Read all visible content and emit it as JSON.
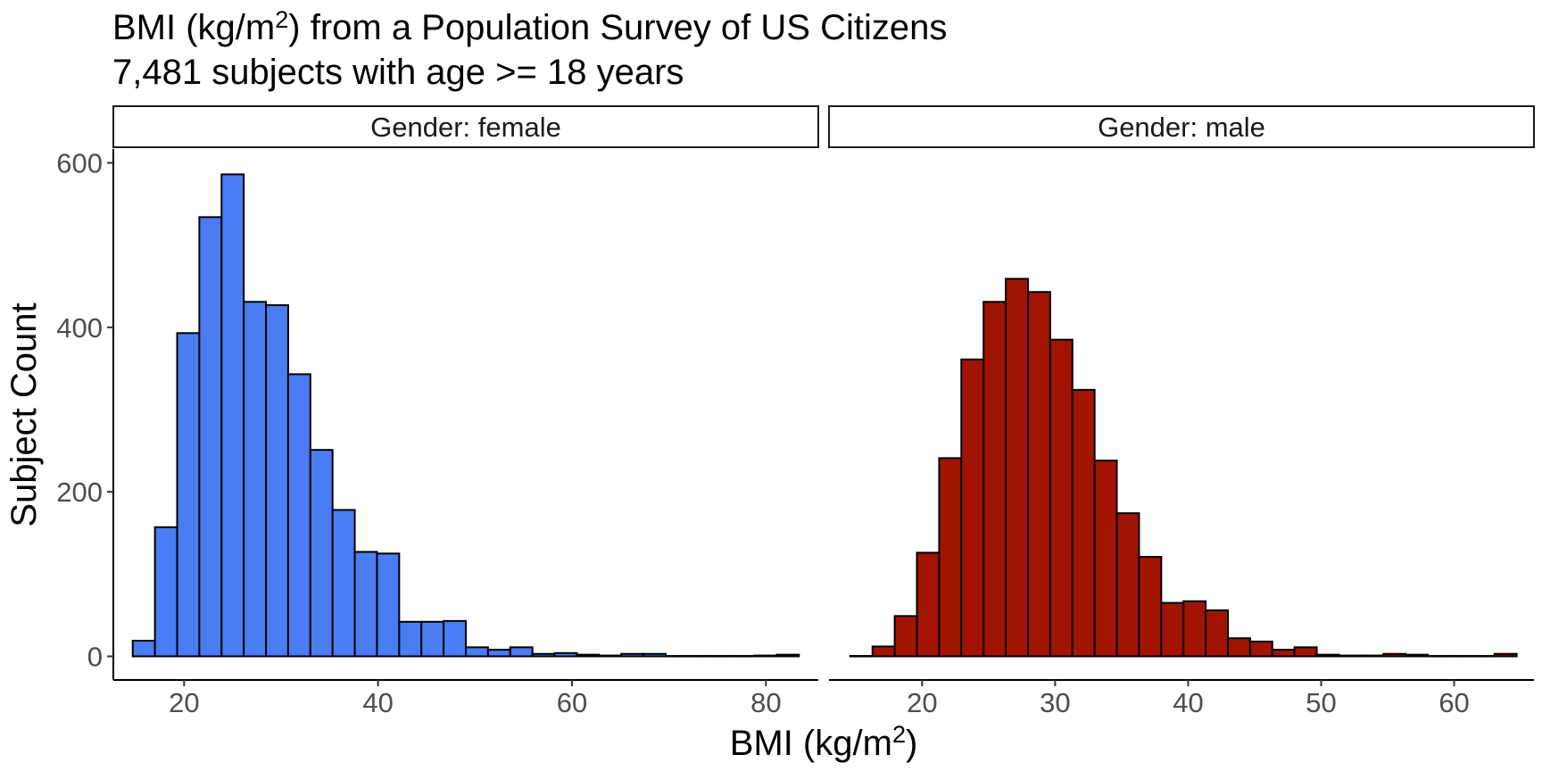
{
  "chart_data": {
    "type": "bar",
    "title": {
      "pre": "BMI (kg/m",
      "sup": "2",
      "post": ") from a Population Survey of US Citizens"
    },
    "subtitle": "7,481 subjects with age >= 18 years",
    "xlabel": {
      "pre": "BMI (kg/m",
      "sup": "2",
      "post": ")"
    },
    "ylabel": "Subject Count",
    "ylim": [
      0,
      615
    ],
    "y_ticks": [
      "0",
      "200",
      "400",
      "600"
    ],
    "y_tick_values": [
      0,
      200,
      400,
      600
    ],
    "grid": false,
    "panels": [
      {
        "strip_label": "Gender: female",
        "color": "#4A7CF3",
        "xlim": [
          12.7,
          85.4
        ],
        "x_ticks": [
          "20",
          "40",
          "60",
          "80"
        ],
        "x_tick_values": [
          20,
          40,
          60,
          80
        ],
        "bin_width": 2.29,
        "bin_start": 14.7,
        "values": [
          19,
          157,
          393,
          534,
          586,
          431,
          427,
          343,
          251,
          178,
          127,
          125,
          42,
          42,
          43,
          11,
          8,
          11,
          3,
          4,
          2,
          1,
          3,
          3,
          0.5,
          0.5,
          0.5,
          0.5,
          1,
          2
        ]
      },
      {
        "strip_label": "Gender: male",
        "color": "#A11402",
        "xlim": [
          13.0,
          66.0
        ],
        "x_ticks": [
          "20",
          "30",
          "40",
          "50",
          "60"
        ],
        "x_tick_values": [
          20,
          30,
          40,
          50,
          60
        ],
        "bin_width": 1.67,
        "bin_start": 14.6,
        "values": [
          0.5,
          12,
          49,
          126,
          241,
          361,
          431,
          459,
          443,
          385,
          324,
          238,
          174,
          121,
          65,
          67,
          56,
          22,
          18,
          8,
          11,
          2,
          1,
          1,
          3,
          2,
          0.5,
          0.5,
          0.5,
          3
        ]
      }
    ]
  }
}
